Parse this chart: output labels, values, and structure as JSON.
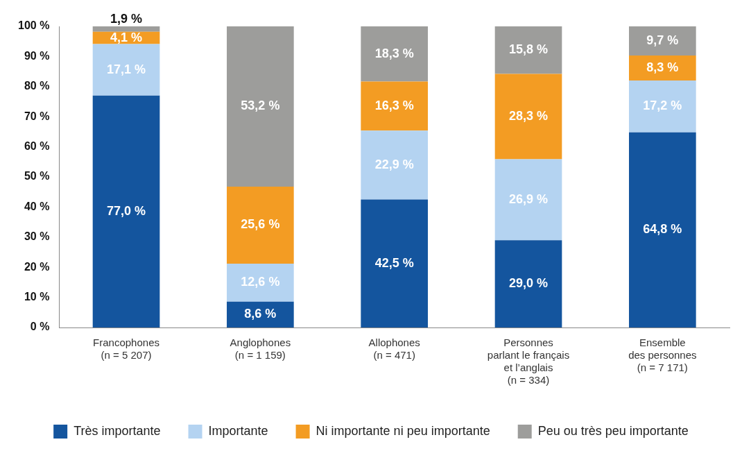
{
  "chart_data": {
    "type": "bar",
    "stacked": true,
    "categories": [
      "Francophones\n(n = 5 207)",
      "Anglophones\n(n = 1 159)",
      "Allophones\n(n = 471)",
      "Personnes\nparlant le français\net l’anglais\n(n = 334)",
      "Ensemble\ndes personnes\n(n = 7 171)"
    ],
    "series": [
      {
        "name": "Très importante",
        "color": "#14559e",
        "values": [
          77.0,
          8.6,
          42.5,
          29.0,
          64.8
        ],
        "value_labels": [
          "77,0 %",
          "8,6 %",
          "42,5 %",
          "29,0 %",
          "64,8 %"
        ]
      },
      {
        "name": "Importante",
        "color": "#b4d3f1",
        "values": [
          17.1,
          12.6,
          22.9,
          26.9,
          17.2
        ],
        "value_labels": [
          "17,1 %",
          "12,6 %",
          "22,9 %",
          "26,9 %",
          "17,2 %"
        ]
      },
      {
        "name": "Ni importante ni peu importante",
        "color": "#f39c23",
        "values": [
          4.1,
          25.6,
          16.3,
          28.3,
          8.3
        ],
        "value_labels": [
          "4,1 %",
          "25,6 %",
          "16,3 %",
          "28,3 %",
          "8,3 %"
        ]
      },
      {
        "name": "Peu ou très peu importante",
        "color": "#9d9d9b",
        "values": [
          1.9,
          53.2,
          18.3,
          15.8,
          9.7
        ],
        "value_labels": [
          "1,9 %",
          "53,2 %",
          "18,3 %",
          "15,8 %",
          "9,7 %"
        ]
      }
    ],
    "ylim": [
      0,
      100
    ],
    "yticks": [
      {
        "value": 0,
        "label": "0 %"
      },
      {
        "value": 10,
        "label": "10 %"
      },
      {
        "value": 20,
        "label": "20 %"
      },
      {
        "value": 30,
        "label": "30 %"
      },
      {
        "value": 40,
        "label": "40 %"
      },
      {
        "value": 50,
        "label": "50 %"
      },
      {
        "value": 60,
        "label": "60 %"
      },
      {
        "value": 70,
        "label": "70 %"
      },
      {
        "value": 80,
        "label": "80 %"
      },
      {
        "value": 90,
        "label": "90 %"
      },
      {
        "value": 100,
        "label": "100 %"
      }
    ],
    "grid": false,
    "legend": "bottom"
  }
}
